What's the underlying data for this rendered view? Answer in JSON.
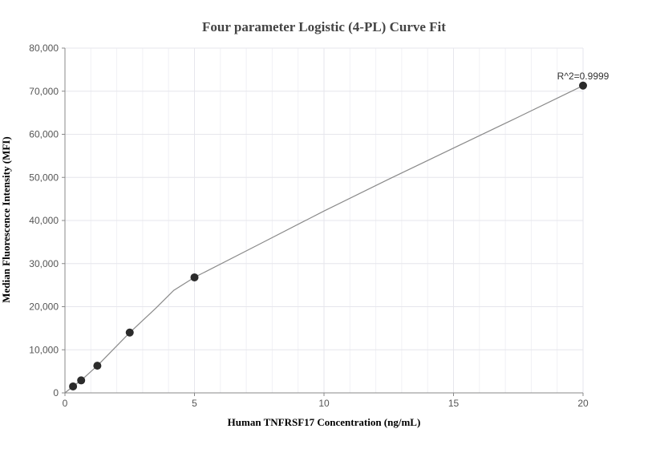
{
  "chart_data": {
    "type": "scatter",
    "title": "Four parameter Logistic (4-PL) Curve Fit",
    "xlabel": "Human TNFRSF17 Concentration (ng/mL)",
    "ylabel": "Median Fluorescence Intensity (MFI)",
    "xlim": [
      0,
      20
    ],
    "ylim": [
      0,
      80000
    ],
    "x_ticks": [
      0,
      5,
      10,
      15,
      20
    ],
    "x_tick_labels": [
      "0",
      "5",
      "10",
      "15",
      "20"
    ],
    "y_ticks": [
      0,
      10000,
      20000,
      30000,
      40000,
      50000,
      60000,
      70000,
      80000
    ],
    "y_tick_labels": [
      "0",
      "10,000",
      "20,000",
      "30,000",
      "40,000",
      "50,000",
      "60,000",
      "70,000",
      "80,000"
    ],
    "grid": true,
    "points": {
      "x": [
        0.3125,
        0.625,
        1.25,
        2.5,
        5,
        20
      ],
      "y": [
        1500,
        2900,
        6300,
        14000,
        26800,
        71300
      ]
    },
    "fit_curve": {
      "x": [
        0,
        0.3125,
        0.625,
        1.25,
        2.5,
        3.5,
        4.2,
        5,
        7.5,
        10,
        12.5,
        15,
        17.5,
        20
      ],
      "y": [
        0,
        1500,
        2900,
        6300,
        14000,
        19600,
        23800,
        26800,
        34500,
        42200,
        49600,
        56800,
        64000,
        71300
      ]
    },
    "annotation": "R^2=0.9999",
    "colors": {
      "points": "#2b2b2b",
      "curve": "#8a8a8a",
      "grid": "#e6e6ec",
      "axis": "#888888"
    }
  }
}
